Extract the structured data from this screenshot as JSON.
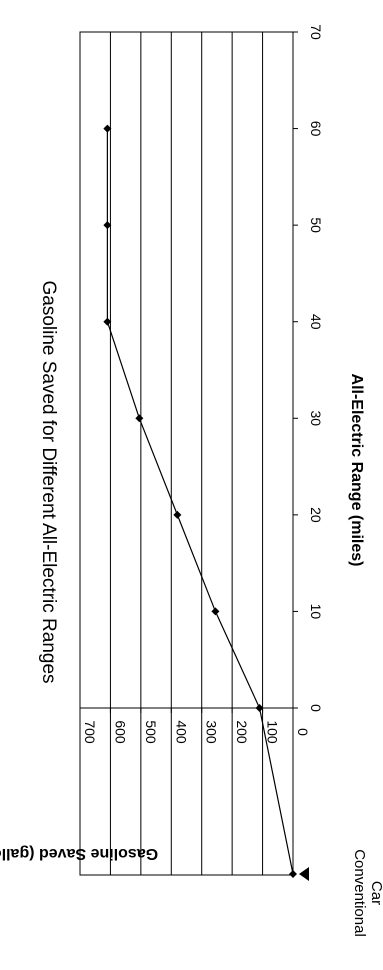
{
  "chart_data": {
    "type": "line",
    "orientation": "rotated-90-clockwise",
    "title": "Gasoline Saved for Different All-Electric Ranges",
    "xlabel": "All-Electric Range (miles)",
    "ylabel": "Gasoline Saved (gallons)",
    "x_ticks": [
      "0",
      "10",
      "20",
      "30",
      "40",
      "50",
      "60",
      "70"
    ],
    "y_ticks": [
      "0",
      "100",
      "200",
      "300",
      "400",
      "500",
      "600",
      "700"
    ],
    "xlim": [
      0,
      70
    ],
    "ylim": [
      0,
      700
    ],
    "grid": "major gridlines on value axis",
    "conventional_marker_label": "Conventional Car",
    "conventional_marker_label_lines": [
      "Conventional",
      "Car"
    ],
    "series": [
      {
        "x": [
          0,
          10,
          20,
          30,
          40,
          50,
          60
        ],
        "values": [
          110,
          255,
          380,
          505,
          610,
          610,
          610
        ]
      }
    ],
    "conventional_point": {
      "x": "Conventional Car",
      "value": 0
    }
  }
}
